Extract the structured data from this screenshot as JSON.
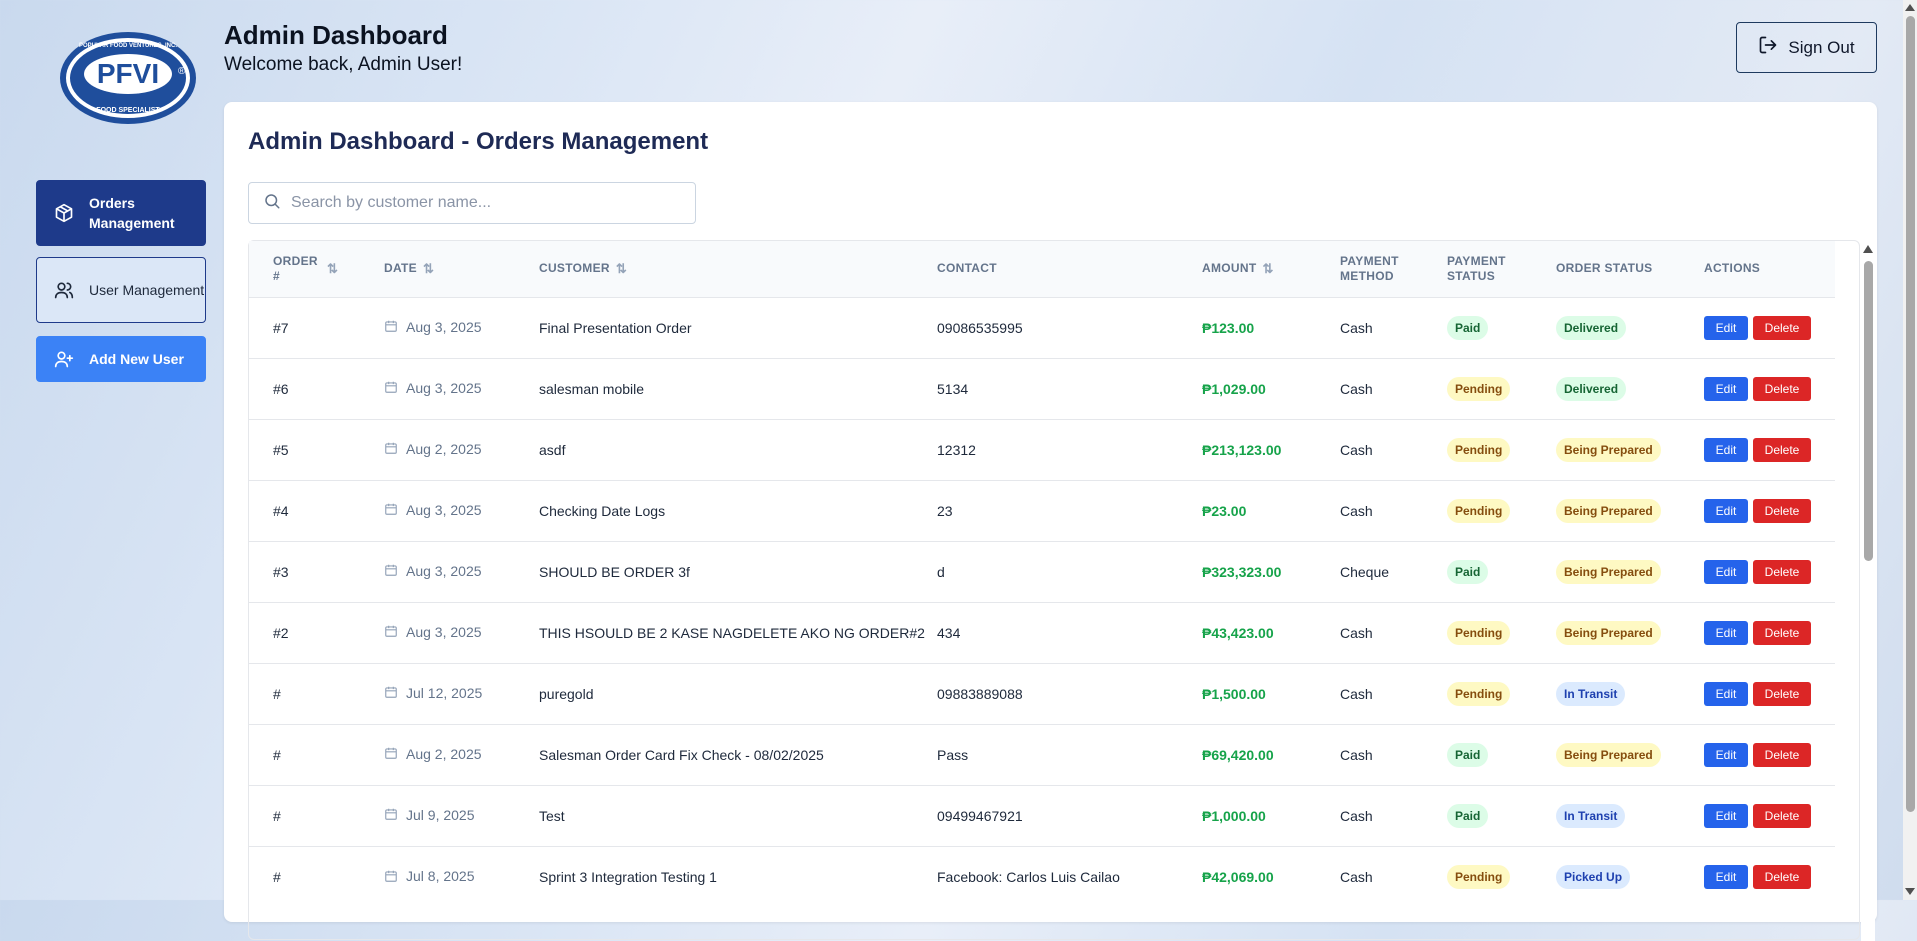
{
  "logo": {
    "top_text": "POPULAR FOOD VENTURES, INC.",
    "main": "PFVI",
    "bottom_text": "FOOD SPECIALIST",
    "registered": "®",
    "color": "#1f4e9c"
  },
  "sidebar": {
    "items": [
      {
        "label": "Orders Management",
        "icon": "package-icon"
      },
      {
        "label": "User Management",
        "icon": "users-icon"
      },
      {
        "label": "Add New User",
        "icon": "user-plus-icon"
      }
    ]
  },
  "header": {
    "title": "Admin Dashboard",
    "subtitle": "Welcome back, Admin User!",
    "signout_label": "Sign Out"
  },
  "main": {
    "title": "Admin Dashboard - Orders Management",
    "search_placeholder": "Search by customer name...",
    "columns": [
      "ORDER #",
      "DATE",
      "CUSTOMER",
      "CONTACT",
      "AMOUNT",
      "PAYMENT METHOD",
      "PAYMENT STATUS",
      "ORDER STATUS",
      "ACTIONS"
    ],
    "edit_label": "Edit",
    "delete_label": "Delete",
    "rows": [
      {
        "order": "#7",
        "date": "Aug 3, 2025",
        "customer": "Final Presentation Order",
        "contact": "09086535995",
        "amount": "₱123.00",
        "method": "Cash",
        "payment_status": "Paid",
        "order_status": "Delivered"
      },
      {
        "order": "#6",
        "date": "Aug 3, 2025",
        "customer": "salesman mobile",
        "contact": "5134",
        "amount": "₱1,029.00",
        "method": "Cash",
        "payment_status": "Pending",
        "order_status": "Delivered"
      },
      {
        "order": "#5",
        "date": "Aug 2, 2025",
        "customer": "asdf",
        "contact": "12312",
        "amount": "₱213,123.00",
        "method": "Cash",
        "payment_status": "Pending",
        "order_status": "Being Prepared"
      },
      {
        "order": "#4",
        "date": "Aug 3, 2025",
        "customer": "Checking Date Logs",
        "contact": "23",
        "amount": "₱23.00",
        "method": "Cash",
        "payment_status": "Pending",
        "order_status": "Being Prepared"
      },
      {
        "order": "#3",
        "date": "Aug 3, 2025",
        "customer": "SHOULD BE ORDER 3f",
        "contact": "d",
        "amount": "₱323,323.00",
        "method": "Cheque",
        "payment_status": "Paid",
        "order_status": "Being Prepared"
      },
      {
        "order": "#2",
        "date": "Aug 3, 2025",
        "customer": "THIS HSOULD BE 2 KASE NAGDELETE AKO NG ORDER#2",
        "contact": "434",
        "amount": "₱43,423.00",
        "method": "Cash",
        "payment_status": "Pending",
        "order_status": "Being Prepared"
      },
      {
        "order": "#",
        "date": "Jul 12, 2025",
        "customer": "puregold",
        "contact": "09883889088",
        "amount": "₱1,500.00",
        "method": "Cash",
        "payment_status": "Pending",
        "order_status": "In Transit"
      },
      {
        "order": "#",
        "date": "Aug 2, 2025",
        "customer": "Salesman Order Card Fix Check - 08/02/2025",
        "contact": "Pass",
        "amount": "₱69,420.00",
        "method": "Cash",
        "payment_status": "Paid",
        "order_status": "Being Prepared"
      },
      {
        "order": "#",
        "date": "Jul 9, 2025",
        "customer": "Test",
        "contact": "09499467921",
        "amount": "₱1,000.00",
        "method": "Cash",
        "payment_status": "Paid",
        "order_status": "In Transit"
      },
      {
        "order": "#",
        "date": "Jul 8, 2025",
        "customer": "Sprint 3 Integration Testing 1",
        "contact": "Facebook: Carlos Luis Cailao",
        "amount": "₱42,069.00",
        "method": "Cash",
        "payment_status": "Pending",
        "order_status": "Picked Up"
      }
    ]
  },
  "colors": {
    "nav_active": "#1e3a8a",
    "add_button": "#3b82f6",
    "edit": "#2563eb",
    "delete": "#dc2626",
    "amount": "#16a34a"
  }
}
